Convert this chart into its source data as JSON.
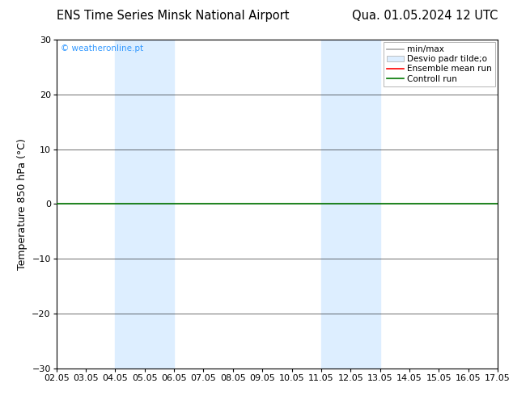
{
  "title_left": "ENS Time Series Minsk National Airport",
  "title_right": "Qua. 01.05.2024 12 UTC",
  "ylabel": "Temperature 850 hPa (°C)",
  "ylim": [
    -30,
    30
  ],
  "yticks": [
    -30,
    -20,
    -10,
    0,
    10,
    20,
    30
  ],
  "xlim": [
    0,
    15
  ],
  "xtick_labels": [
    "02.05",
    "03.05",
    "04.05",
    "05.05",
    "06.05",
    "07.05",
    "08.05",
    "09.05",
    "10.05",
    "11.05",
    "12.05",
    "13.05",
    "14.05",
    "15.05",
    "16.05",
    "17.05"
  ],
  "xtick_positions": [
    0,
    1,
    2,
    3,
    4,
    5,
    6,
    7,
    8,
    9,
    10,
    11,
    12,
    13,
    14,
    15
  ],
  "shaded_bands": [
    {
      "x_start": 2,
      "x_end": 4,
      "color": "#ddeeff"
    },
    {
      "x_start": 9,
      "x_end": 11,
      "color": "#ddeeff"
    }
  ],
  "control_run_y": 0,
  "control_run_color": "#007700",
  "ensemble_mean_color": "#ff0000",
  "minmax_color": "#aaaaaa",
  "copyright_text": "© weatheronline.pt",
  "copyright_color": "#3399ff",
  "bg_color": "#ffffff",
  "plot_bg_color": "#ffffff",
  "title_fontsize": 10.5,
  "axis_fontsize": 9,
  "tick_fontsize": 8,
  "legend_fontsize": 7.5
}
